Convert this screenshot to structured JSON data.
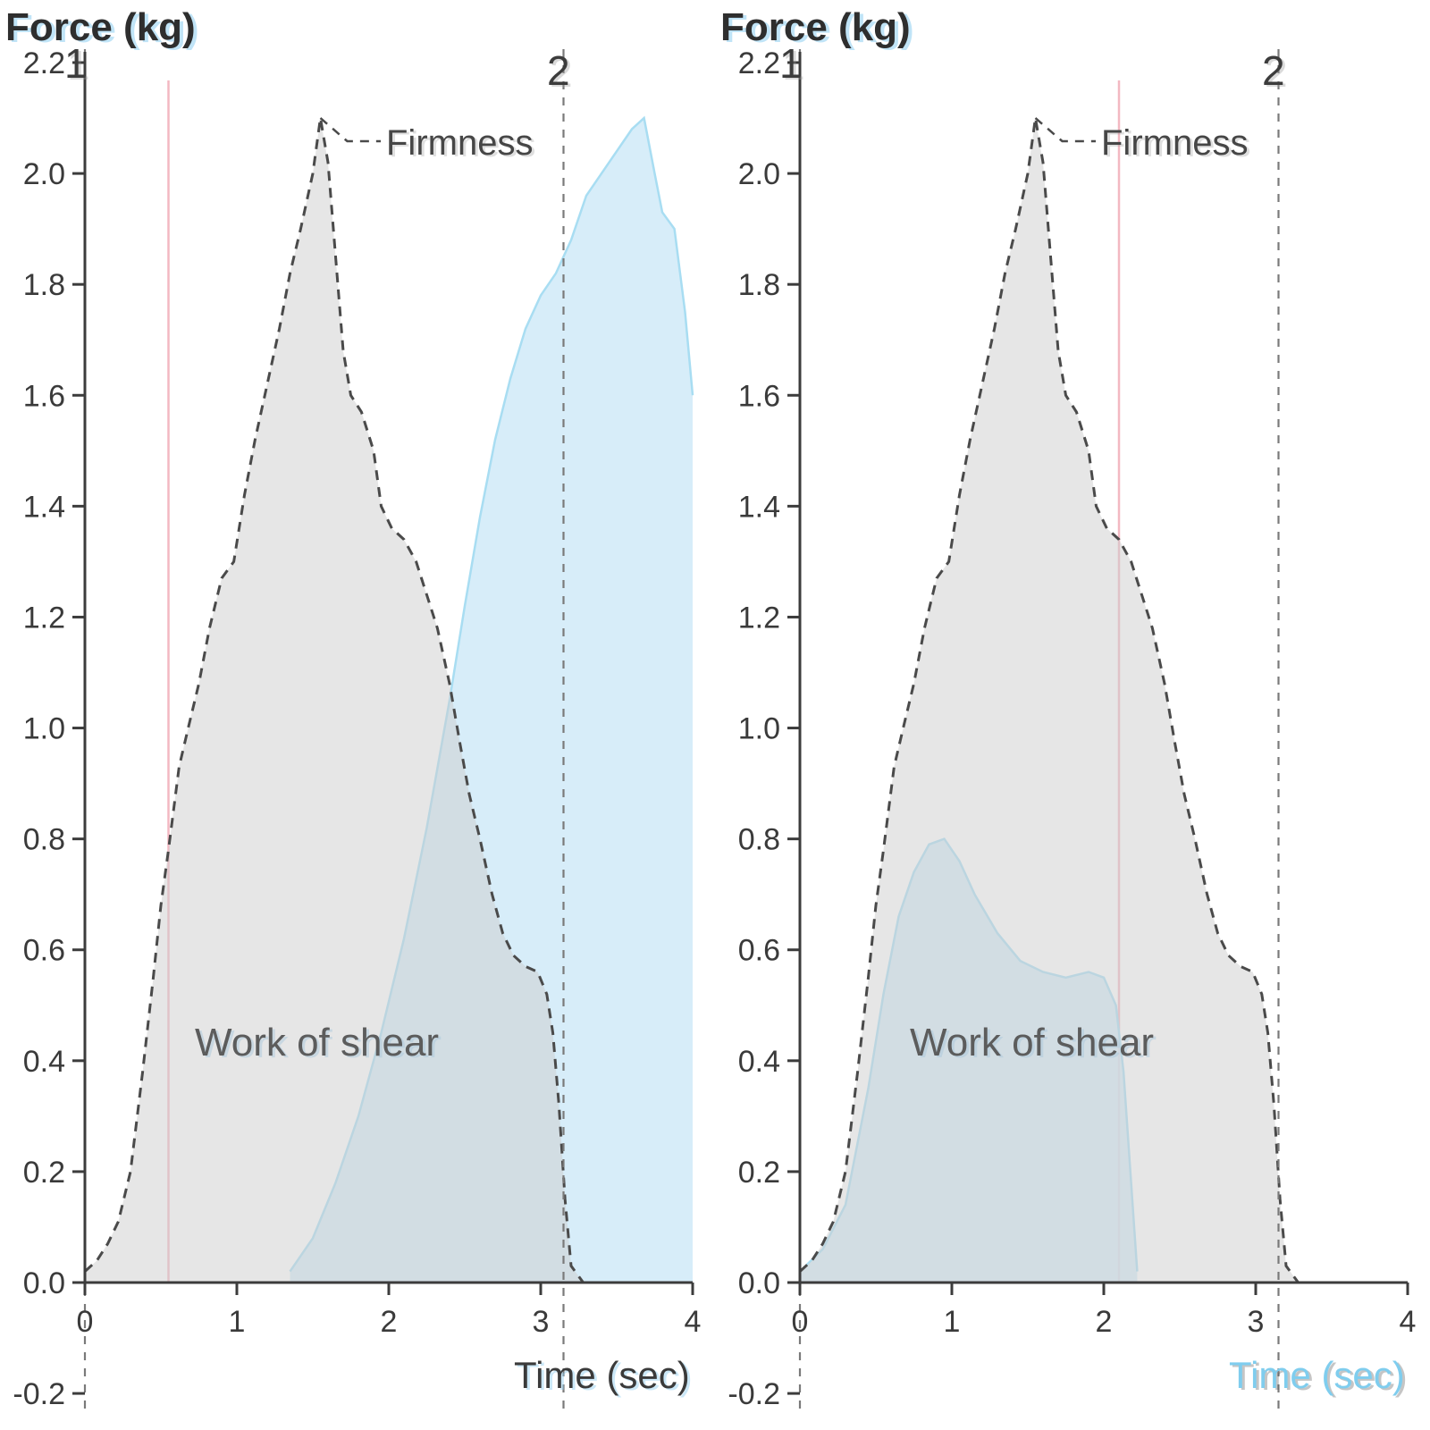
{
  "page": {
    "background": "#ffffff"
  },
  "colors": {
    "curve_stroke": "#4a4a4a",
    "gray_fill": "rgba(206,206,206,0.5)",
    "blue_fill": "rgba(205,232,247,0.8)",
    "blue_stroke": "#a8ddf2",
    "pink_line": "#f3b8c2",
    "marker_line": "#7a7a7a",
    "axis": "#3c3c3c",
    "tick_text": "#3a3a3a",
    "ghost_text": "#a5d9f2"
  },
  "chart_data": [
    {
      "type": "area",
      "panel": "left",
      "title": "",
      "xlabel": "Time (sec)",
      "ylabel": "Force (kg)",
      "xlim": [
        0,
        4
      ],
      "ylim": [
        -0.2,
        2.2
      ],
      "xticks": [
        "0",
        "1",
        "2",
        "3",
        "4"
      ],
      "yticks": [
        "2.2",
        "2.0",
        "1.8",
        "1.6",
        "1.4",
        "1.2",
        "1.0",
        "0.8",
        "0.6",
        "0.4",
        "0.2",
        "0.0",
        "-0.2"
      ],
      "legend": [],
      "grid": false,
      "annotations": {
        "firmness_label": "Firmness",
        "work_label": "Work of shear",
        "marker1": "1",
        "marker2": "2"
      },
      "marker1_x": 0,
      "marker2_x": 3.15,
      "event_line_x": 0.55,
      "firmness_peak": [
        1.55,
        2.1
      ],
      "series": [
        {
          "name": "shear-force-curve",
          "style": "gray-dashed",
          "points": [
            [
              0,
              0.02
            ],
            [
              0.08,
              0.04
            ],
            [
              0.15,
              0.07
            ],
            [
              0.22,
              0.11
            ],
            [
              0.3,
              0.2
            ],
            [
              0.38,
              0.38
            ],
            [
              0.45,
              0.55
            ],
            [
              0.5,
              0.68
            ],
            [
              0.55,
              0.78
            ],
            [
              0.62,
              0.93
            ],
            [
              0.68,
              1.0
            ],
            [
              0.75,
              1.08
            ],
            [
              0.82,
              1.18
            ],
            [
              0.9,
              1.27
            ],
            [
              0.98,
              1.3
            ],
            [
              1.05,
              1.42
            ],
            [
              1.12,
              1.52
            ],
            [
              1.2,
              1.62
            ],
            [
              1.28,
              1.72
            ],
            [
              1.35,
              1.82
            ],
            [
              1.42,
              1.9
            ],
            [
              1.5,
              2.0
            ],
            [
              1.55,
              2.1
            ],
            [
              1.6,
              2.02
            ],
            [
              1.65,
              1.85
            ],
            [
              1.7,
              1.68
            ],
            [
              1.75,
              1.6
            ],
            [
              1.82,
              1.57
            ],
            [
              1.9,
              1.5
            ],
            [
              1.95,
              1.4
            ],
            [
              2.02,
              1.36
            ],
            [
              2.1,
              1.34
            ],
            [
              2.18,
              1.3
            ],
            [
              2.25,
              1.24
            ],
            [
              2.32,
              1.18
            ],
            [
              2.4,
              1.08
            ],
            [
              2.47,
              0.97
            ],
            [
              2.53,
              0.88
            ],
            [
              2.6,
              0.8
            ],
            [
              2.68,
              0.7
            ],
            [
              2.75,
              0.63
            ],
            [
              2.82,
              0.59
            ],
            [
              2.9,
              0.57
            ],
            [
              2.98,
              0.56
            ],
            [
              3.04,
              0.52
            ],
            [
              3.08,
              0.45
            ],
            [
              3.12,
              0.32
            ],
            [
              3.16,
              0.15
            ],
            [
              3.2,
              0.03
            ],
            [
              3.28,
              0.0
            ]
          ]
        },
        {
          "name": "overlay-curve",
          "style": "blue-fill",
          "points": [
            [
              1.35,
              0.02
            ],
            [
              1.5,
              0.08
            ],
            [
              1.65,
              0.18
            ],
            [
              1.8,
              0.3
            ],
            [
              1.95,
              0.45
            ],
            [
              2.1,
              0.62
            ],
            [
              2.25,
              0.82
            ],
            [
              2.4,
              1.05
            ],
            [
              2.5,
              1.22
            ],
            [
              2.6,
              1.38
            ],
            [
              2.7,
              1.52
            ],
            [
              2.8,
              1.63
            ],
            [
              2.9,
              1.72
            ],
            [
              3.0,
              1.78
            ],
            [
              3.1,
              1.82
            ],
            [
              3.2,
              1.88
            ],
            [
              3.3,
              1.96
            ],
            [
              3.45,
              2.02
            ],
            [
              3.6,
              2.08
            ],
            [
              3.68,
              2.1
            ],
            [
              3.75,
              2.0
            ],
            [
              3.8,
              1.93
            ],
            [
              3.88,
              1.9
            ],
            [
              3.95,
              1.75
            ],
            [
              4.0,
              1.6
            ]
          ]
        }
      ]
    },
    {
      "type": "area",
      "panel": "right",
      "title": "",
      "xlabel": "Time (sec)",
      "ylabel": "Force (kg)",
      "xlim": [
        0,
        4
      ],
      "ylim": [
        -0.2,
        2.2
      ],
      "xticks": [
        "0",
        "1",
        "2",
        "3",
        "4"
      ],
      "yticks": [
        "2.2",
        "2.0",
        "1.8",
        "1.6",
        "1.4",
        "1.2",
        "1.0",
        "0.8",
        "0.6",
        "0.4",
        "0.2",
        "0.0",
        "-0.2"
      ],
      "legend": [],
      "grid": false,
      "annotations": {
        "firmness_label": "Firmness",
        "work_label": "Work of shear",
        "marker1": "1",
        "marker2": "2"
      },
      "marker1_x": 0,
      "marker2_x": 3.15,
      "event_line_x": 2.1,
      "firmness_peak": [
        1.55,
        2.1
      ],
      "series": [
        {
          "name": "shear-force-curve",
          "style": "gray-dashed",
          "points": [
            [
              0,
              0.02
            ],
            [
              0.08,
              0.04
            ],
            [
              0.15,
              0.07
            ],
            [
              0.22,
              0.11
            ],
            [
              0.3,
              0.2
            ],
            [
              0.38,
              0.38
            ],
            [
              0.45,
              0.55
            ],
            [
              0.5,
              0.68
            ],
            [
              0.55,
              0.78
            ],
            [
              0.62,
              0.93
            ],
            [
              0.68,
              1.0
            ],
            [
              0.75,
              1.08
            ],
            [
              0.82,
              1.18
            ],
            [
              0.9,
              1.27
            ],
            [
              0.98,
              1.3
            ],
            [
              1.05,
              1.42
            ],
            [
              1.12,
              1.52
            ],
            [
              1.2,
              1.62
            ],
            [
              1.28,
              1.72
            ],
            [
              1.35,
              1.82
            ],
            [
              1.42,
              1.9
            ],
            [
              1.5,
              2.0
            ],
            [
              1.55,
              2.1
            ],
            [
              1.6,
              2.02
            ],
            [
              1.65,
              1.85
            ],
            [
              1.7,
              1.68
            ],
            [
              1.75,
              1.6
            ],
            [
              1.82,
              1.57
            ],
            [
              1.9,
              1.5
            ],
            [
              1.95,
              1.4
            ],
            [
              2.02,
              1.36
            ],
            [
              2.1,
              1.34
            ],
            [
              2.18,
              1.3
            ],
            [
              2.25,
              1.24
            ],
            [
              2.32,
              1.18
            ],
            [
              2.4,
              1.08
            ],
            [
              2.47,
              0.97
            ],
            [
              2.53,
              0.88
            ],
            [
              2.6,
              0.8
            ],
            [
              2.68,
              0.7
            ],
            [
              2.75,
              0.63
            ],
            [
              2.82,
              0.59
            ],
            [
              2.9,
              0.57
            ],
            [
              2.98,
              0.56
            ],
            [
              3.04,
              0.52
            ],
            [
              3.08,
              0.45
            ],
            [
              3.12,
              0.32
            ],
            [
              3.16,
              0.15
            ],
            [
              3.2,
              0.03
            ],
            [
              3.28,
              0.0
            ]
          ]
        },
        {
          "name": "overlay-curve",
          "style": "blue-fill",
          "points": [
            [
              0,
              0.02
            ],
            [
              0.15,
              0.06
            ],
            [
              0.3,
              0.14
            ],
            [
              0.45,
              0.35
            ],
            [
              0.55,
              0.52
            ],
            [
              0.65,
              0.66
            ],
            [
              0.75,
              0.74
            ],
            [
              0.85,
              0.79
            ],
            [
              0.95,
              0.8
            ],
            [
              1.05,
              0.76
            ],
            [
              1.15,
              0.7
            ],
            [
              1.3,
              0.63
            ],
            [
              1.45,
              0.58
            ],
            [
              1.6,
              0.56
            ],
            [
              1.75,
              0.55
            ],
            [
              1.9,
              0.56
            ],
            [
              2.0,
              0.55
            ],
            [
              2.08,
              0.5
            ],
            [
              2.13,
              0.38
            ],
            [
              2.18,
              0.18
            ],
            [
              2.22,
              0.02
            ]
          ]
        }
      ]
    }
  ]
}
